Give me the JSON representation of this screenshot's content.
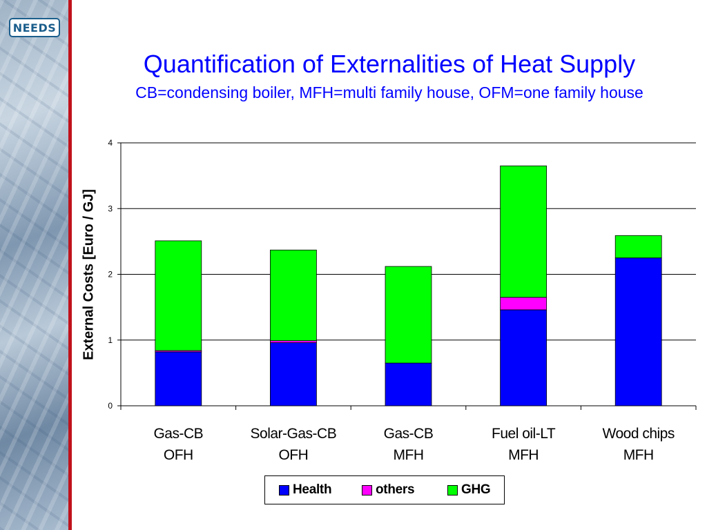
{
  "header": {
    "logo_text": "NEEDS",
    "title": "Quantification of Externalities of Heat Supply",
    "subtitle": "CB=condensing boiler, MFH=multi family house, OFM=one family house"
  },
  "colors": {
    "title": "#0000ff",
    "sidebar_stripe": "#c0121c",
    "health": "#0000ff",
    "others": "#ff00ff",
    "ghg": "#00ff00"
  },
  "chart_data": {
    "type": "bar",
    "stacked": true,
    "categories": [
      [
        "Gas-CB",
        "OFH"
      ],
      [
        "Solar-Gas-CB",
        "OFH"
      ],
      [
        "Gas-CB",
        "MFH"
      ],
      [
        "Fuel oil-LT",
        "MFH"
      ],
      [
        "Wood chips",
        "MFH"
      ]
    ],
    "series": [
      {
        "name": "Health",
        "color": "#0000ff",
        "values": [
          0.82,
          0.96,
          0.65,
          1.46,
          2.25
        ]
      },
      {
        "name": "others",
        "color": "#ff00ff",
        "values": [
          0.02,
          0.03,
          0.0,
          0.19,
          0.0
        ]
      },
      {
        "name": "GHG",
        "color": "#00ff00",
        "values": [
          1.67,
          1.38,
          1.47,
          2.0,
          0.34
        ]
      }
    ],
    "ylabel": "External Costs [Euro / GJ]",
    "xlabel": "",
    "ylim": [
      0,
      4
    ],
    "yticks": [
      0,
      1,
      2,
      3,
      4
    ],
    "grid": true,
    "legend": "bottom"
  }
}
